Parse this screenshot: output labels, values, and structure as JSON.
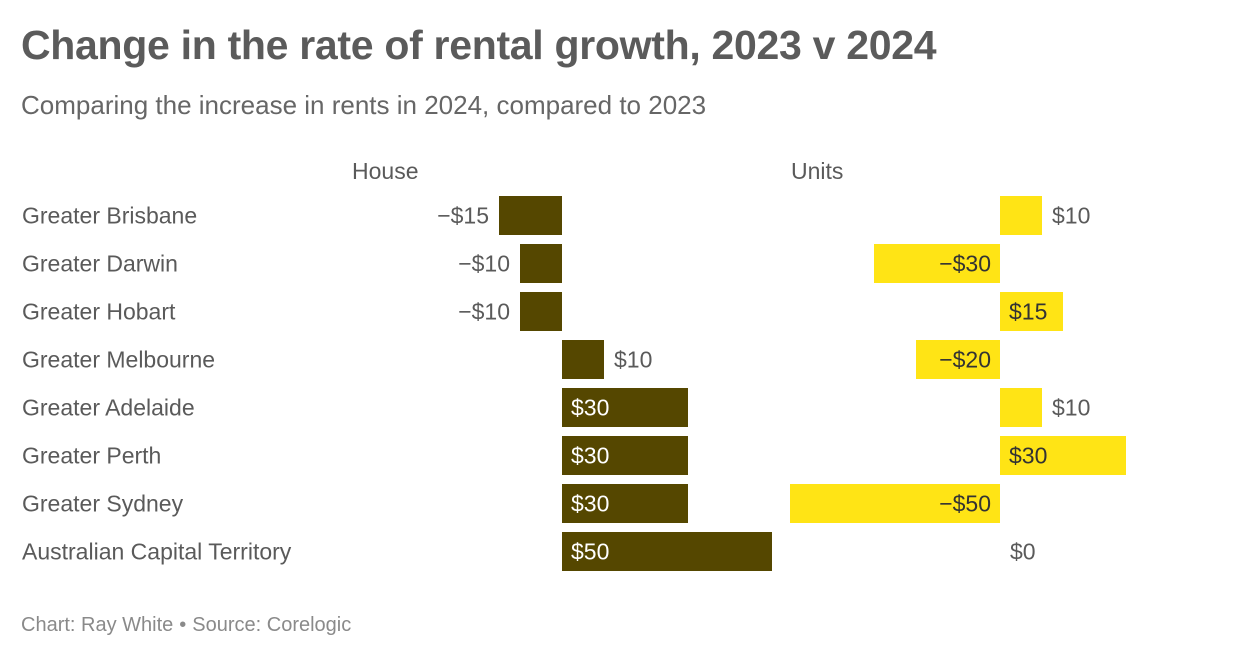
{
  "title": "Change in the rate of rental growth, 2023 v 2024",
  "subtitle": "Comparing the increase in rents in 2024, compared to 2023",
  "footer": {
    "chart_credit": "Chart: Ray White",
    "separator": "•",
    "source": "Source: Corelogic"
  },
  "colors": {
    "house": "#554700",
    "units": "#ffe415",
    "text": "#5a5a5a",
    "label_on_dark": "#ffffff",
    "label_on_light": "#333333"
  },
  "chart_data": {
    "type": "bar",
    "orientation": "horizontal",
    "categories": [
      "Greater Brisbane",
      "Greater Darwin",
      "Greater Hobart",
      "Greater Melbourne",
      "Greater Adelaide",
      "Greater Perth",
      "Greater Sydney",
      "Australian Capital Territory"
    ],
    "series": [
      {
        "name": "House",
        "values": [
          -15,
          -10,
          -10,
          10,
          30,
          30,
          30,
          50
        ],
        "labels": [
          "−$15",
          "−$10",
          "−$10",
          "$10",
          "$30",
          "$30",
          "$30",
          "$50"
        ]
      },
      {
        "name": "Units",
        "values": [
          10,
          -30,
          15,
          -20,
          10,
          30,
          -50,
          0
        ],
        "labels": [
          "$10",
          "−$30",
          "$15",
          "−$20",
          "$10",
          "$30",
          "−$50",
          "$0"
        ]
      }
    ]
  }
}
